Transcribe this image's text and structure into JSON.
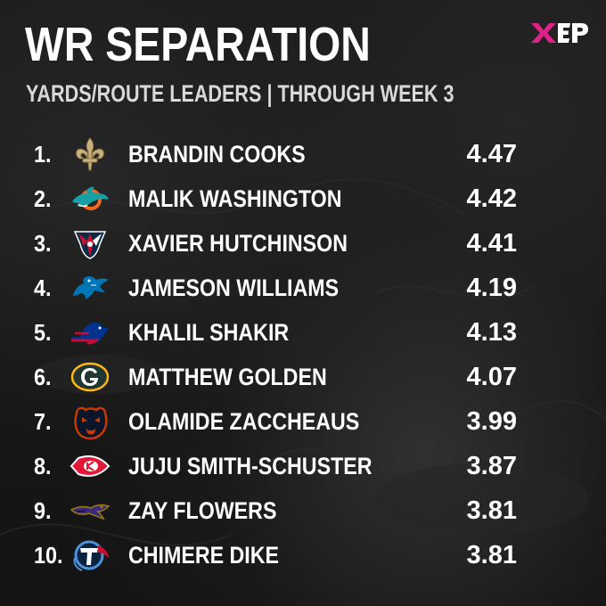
{
  "header": {
    "title": "WR SEPARATION",
    "subtitle": "YARDS/ROUTE LEADERS | THROUGH WEEK 3",
    "brand_logo": "XEP",
    "brand_color": "#e0218a"
  },
  "leaders": [
    {
      "rank": "1.",
      "team_icon": "saints-fleur-de-lis-icon",
      "player": "BRANDIN COOKS",
      "value": "4.47"
    },
    {
      "rank": "2.",
      "team_icon": "dolphins-logo-icon",
      "player": "MALIK WASHINGTON",
      "value": "4.42"
    },
    {
      "rank": "3.",
      "team_icon": "texans-bull-icon",
      "player": "XAVIER HUTCHINSON",
      "value": "4.41"
    },
    {
      "rank": "4.",
      "team_icon": "lions-logo-icon",
      "player": "JAMESON WILLIAMS",
      "value": "4.19"
    },
    {
      "rank": "5.",
      "team_icon": "bills-buffalo-icon",
      "player": "KHALIL SHAKIR",
      "value": "4.13"
    },
    {
      "rank": "6.",
      "team_icon": "packers-g-icon",
      "player": "MATTHEW GOLDEN",
      "value": "4.07"
    },
    {
      "rank": "7.",
      "team_icon": "bears-head-icon",
      "player": "OLAMIDE ZACCHEAUS",
      "value": "3.99"
    },
    {
      "rank": "8.",
      "team_icon": "chiefs-arrowhead-icon",
      "player": "JUJU SMITH-SCHUSTER",
      "value": "3.87"
    },
    {
      "rank": "9.",
      "team_icon": "ravens-bird-icon",
      "player": "ZAY FLOWERS",
      "value": "3.81"
    },
    {
      "rank": "10.",
      "team_icon": "titans-t-icon",
      "player": "CHIMERE DIKE",
      "value": "3.81"
    }
  ]
}
